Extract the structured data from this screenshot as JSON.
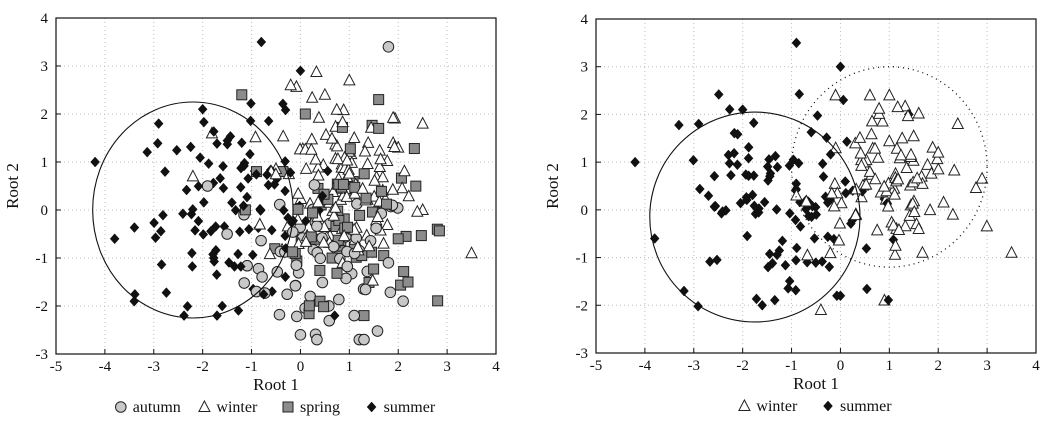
{
  "chart_data": [
    {
      "type": "scatter",
      "xlabel": "Root 1",
      "ylabel": "Root 2",
      "xlim": [
        -5,
        4
      ],
      "ylim": [
        -3,
        4
      ],
      "xticks": [
        "-5",
        "-4",
        "-3",
        "-2",
        "-1",
        "0",
        "1",
        "2",
        "3",
        "4"
      ],
      "yticks": [
        "-3",
        "-2",
        "-1",
        "0",
        "1",
        "2",
        "3",
        "4"
      ],
      "grid": true,
      "legend_position": "bottom",
      "ellipses": [
        {
          "group": "summer",
          "center": [
            -2.2,
            0.0
          ],
          "radius_x": 2.05,
          "radius_y": 2.25,
          "style": "solid"
        }
      ],
      "series": [
        {
          "name": "autumn",
          "marker": "circle",
          "color": "#c8c8c8",
          "count": 70,
          "center": [
            0.6,
            -1.1
          ],
          "spread": [
            0.85,
            0.8
          ],
          "x_range": [
            -1.6,
            2.6
          ],
          "y_range": [
            -2.7,
            3.4
          ],
          "sample": [
            [
              1.8,
              3.4
            ],
            [
              -1.5,
              -0.5
            ],
            [
              -1.9,
              0.5
            ],
            [
              0.2,
              -1.8
            ],
            [
              1.1,
              -2.2
            ],
            [
              2.1,
              -1.9
            ],
            [
              1.8,
              -1.1
            ],
            [
              0.0,
              -2.6
            ],
            [
              1.3,
              -2.7
            ],
            [
              -0.9,
              -1.7
            ]
          ]
        },
        {
          "name": "winter",
          "marker": "triangle",
          "color": "#ffffff",
          "count": 130,
          "center": [
            0.8,
            0.5
          ],
          "spread": [
            0.75,
            0.95
          ],
          "x_range": [
            -2.3,
            3.6
          ],
          "y_range": [
            -1.9,
            2.9
          ],
          "sample": [
            [
              3.5,
              -0.9
            ],
            [
              2.5,
              0.0
            ],
            [
              2.0,
              1.3
            ],
            [
              1.0,
              2.7
            ],
            [
              0.5,
              2.4
            ],
            [
              -0.2,
              2.6
            ],
            [
              -2.2,
              0.7
            ],
            [
              2.5,
              1.8
            ],
            [
              -0.6,
              0.8
            ],
            [
              1.7,
              -0.7
            ]
          ]
        },
        {
          "name": "spring",
          "marker": "square",
          "color": "#8c8c8c",
          "count": 75,
          "center": [
            0.9,
            -0.2
          ],
          "spread": [
            0.7,
            0.85
          ],
          "x_range": [
            -1.3,
            2.9
          ],
          "y_range": [
            -2.3,
            2.4
          ],
          "sample": [
            [
              -1.2,
              2.4
            ],
            [
              1.6,
              2.3
            ],
            [
              0.1,
              2.0
            ],
            [
              2.2,
              -1.5
            ],
            [
              1.3,
              -2.2
            ],
            [
              2.8,
              -0.4
            ],
            [
              -0.9,
              0.8
            ],
            [
              0.4,
              -1.9
            ],
            [
              1.6,
              1.7
            ],
            [
              2.0,
              -0.6
            ]
          ]
        },
        {
          "name": "summer",
          "marker": "diamond",
          "color": "#111111",
          "count": 115,
          "center": [
            -1.3,
            0.0
          ],
          "spread": [
            1.05,
            0.95
          ],
          "x_range": [
            -4.2,
            0.7
          ],
          "y_range": [
            -2.2,
            3.5
          ],
          "sample": [
            [
              -4.2,
              1.0
            ],
            [
              -3.8,
              -0.6
            ],
            [
              -0.8,
              3.5
            ],
            [
              0.0,
              2.9
            ],
            [
              -2.0,
              2.1
            ],
            [
              -1.6,
              -2.0
            ],
            [
              -3.4,
              -1.9
            ],
            [
              -2.9,
              1.8
            ],
            [
              -1.2,
              1.4
            ],
            [
              -0.3,
              -0.8
            ]
          ]
        }
      ]
    },
    {
      "type": "scatter",
      "xlabel": "Root 1",
      "ylabel": "Root 2",
      "xlim": [
        -5,
        4
      ],
      "ylim": [
        -3,
        4
      ],
      "xticks": [
        "-5",
        "-4",
        "-3",
        "-2",
        "-1",
        "0",
        "1",
        "2",
        "3",
        "4"
      ],
      "yticks": [
        "-3",
        "-2",
        "-1",
        "0",
        "1",
        "2",
        "3",
        "4"
      ],
      "grid": true,
      "legend_position": "bottom",
      "ellipses": [
        {
          "group": "summer",
          "center": [
            -1.75,
            -0.15
          ],
          "radius_x": 2.15,
          "radius_y": 2.2,
          "style": "solid"
        },
        {
          "group": "winter",
          "center": [
            1.0,
            0.9
          ],
          "radius_x": 2.0,
          "radius_y": 2.1,
          "style": "dotted"
        }
      ],
      "series": [
        {
          "name": "winter",
          "marker": "triangle",
          "color": "#ffffff",
          "count": 105,
          "center": [
            0.9,
            0.6
          ],
          "spread": [
            0.75,
            0.85
          ],
          "x_range": [
            -1.4,
            3.6
          ],
          "y_range": [
            -2.1,
            2.4
          ],
          "sample": [
            [
              3.5,
              -0.9
            ],
            [
              2.4,
              1.8
            ],
            [
              1.0,
              2.4
            ],
            [
              -0.9,
              0.3
            ],
            [
              0.9,
              -1.9
            ],
            [
              -0.1,
              2.4
            ],
            [
              2.0,
              1.2
            ],
            [
              2.3,
              -0.1
            ],
            [
              1.6,
              -0.4
            ],
            [
              -0.4,
              -2.1
            ]
          ]
        },
        {
          "name": "summer",
          "marker": "diamond",
          "color": "#111111",
          "count": 120,
          "center": [
            -1.1,
            0.0
          ],
          "spread": [
            1.05,
            0.95
          ],
          "x_range": [
            -4.2,
            1.4
          ],
          "y_range": [
            -2.2,
            3.5
          ],
          "sample": [
            [
              -4.2,
              1.0
            ],
            [
              -3.8,
              -0.6
            ],
            [
              -0.9,
              3.5
            ],
            [
              0.0,
              3.0
            ],
            [
              -2.0,
              2.1
            ],
            [
              -1.6,
              -2.0
            ],
            [
              -3.2,
              -1.7
            ],
            [
              -2.9,
              1.8
            ],
            [
              1.4,
              2.0
            ],
            [
              0.0,
              -1.8
            ]
          ]
        }
      ]
    }
  ]
}
